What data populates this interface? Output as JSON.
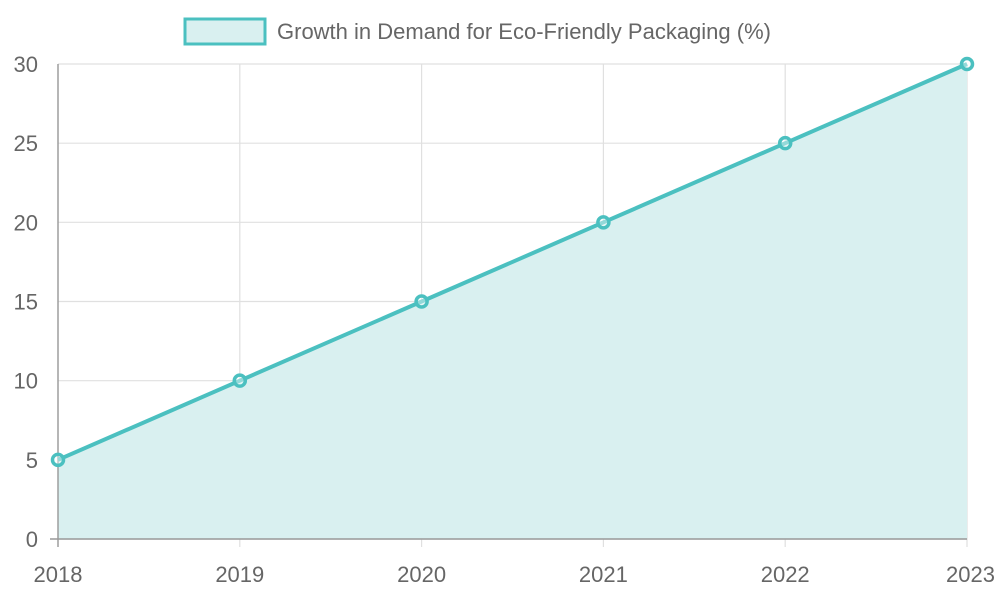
{
  "chart_data": {
    "type": "area",
    "x": [
      "2018",
      "2019",
      "2020",
      "2021",
      "2022",
      "2023"
    ],
    "series": [
      {
        "name": "Growth in Demand for Eco-Friendly Packaging (%)",
        "values": [
          5,
          10,
          15,
          20,
          25,
          30
        ]
      }
    ],
    "ylim": [
      0,
      30
    ],
    "yticks": [
      0,
      5,
      10,
      15,
      20,
      25,
      30
    ],
    "grid": true,
    "legend": "top-center",
    "colors": {
      "line": "#4bc0c0",
      "fill": "#d9f0f0",
      "grid": "#e0e0e0",
      "axis": "#999999",
      "text": "#666666"
    }
  }
}
